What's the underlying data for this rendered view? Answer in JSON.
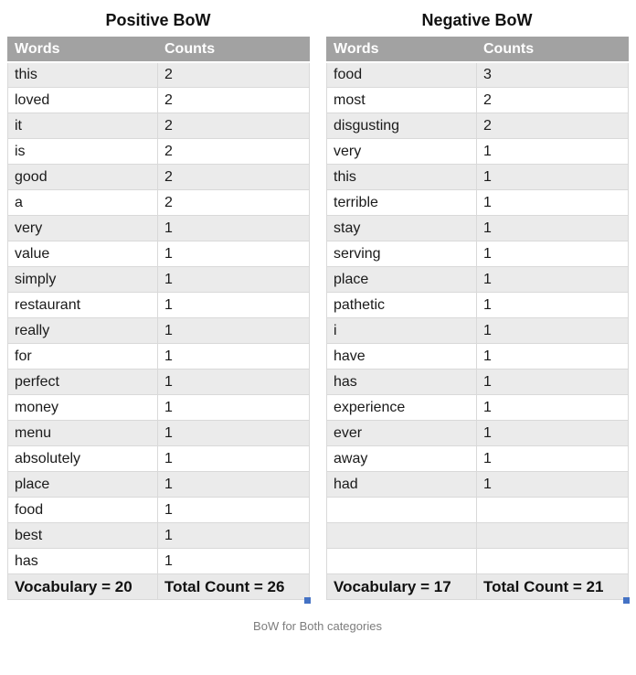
{
  "caption": "BoW for Both categories",
  "colors": {
    "header_bg": "#a2a2a2",
    "stripe_bg": "#ebebeb",
    "footer_bg": "#e9e9e9",
    "border": "#d9d9d9",
    "accent_square": "#4472c4",
    "caption_text": "#7d7d7d"
  },
  "tables": [
    {
      "title": "Positive BoW",
      "columns": [
        "Words",
        "Counts"
      ],
      "rows": [
        [
          "this",
          "2"
        ],
        [
          "loved",
          "2"
        ],
        [
          "it",
          "2"
        ],
        [
          "is",
          "2"
        ],
        [
          "good",
          "2"
        ],
        [
          "a",
          "2"
        ],
        [
          "very",
          "1"
        ],
        [
          "value",
          "1"
        ],
        [
          "simply",
          "1"
        ],
        [
          "restaurant",
          "1"
        ],
        [
          "really",
          "1"
        ],
        [
          "for",
          "1"
        ],
        [
          "perfect",
          "1"
        ],
        [
          "money",
          "1"
        ],
        [
          "menu",
          "1"
        ],
        [
          "absolutely",
          "1"
        ],
        [
          "place",
          "1"
        ],
        [
          "food",
          "1"
        ],
        [
          "best",
          "1"
        ],
        [
          "has",
          "1"
        ]
      ],
      "footer": {
        "vocabulary": "Vocabulary = 20",
        "total": "Total Count = 26"
      }
    },
    {
      "title": "Negative BoW",
      "columns": [
        "Words",
        "Counts"
      ],
      "rows": [
        [
          "food",
          "3"
        ],
        [
          "most",
          "2"
        ],
        [
          "disgusting",
          "2"
        ],
        [
          "very",
          "1"
        ],
        [
          "this",
          "1"
        ],
        [
          "terrible",
          "1"
        ],
        [
          "stay",
          "1"
        ],
        [
          "serving",
          "1"
        ],
        [
          "place",
          "1"
        ],
        [
          "pathetic",
          "1"
        ],
        [
          "i",
          "1"
        ],
        [
          "have",
          "1"
        ],
        [
          "has",
          "1"
        ],
        [
          "experience",
          "1"
        ],
        [
          "ever",
          "1"
        ],
        [
          "away",
          "1"
        ],
        [
          "had",
          "1"
        ],
        [
          "",
          ""
        ],
        [
          "",
          ""
        ],
        [
          "",
          ""
        ]
      ],
      "footer": {
        "vocabulary": "Vocabulary = 17",
        "total": "Total Count = 21"
      }
    }
  ]
}
